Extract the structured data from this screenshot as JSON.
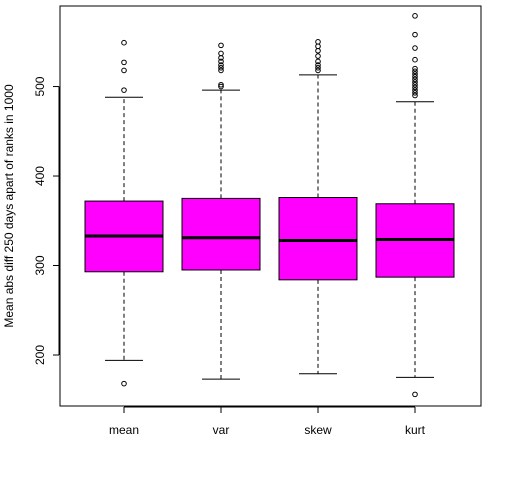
{
  "chart_data": {
    "type": "boxplot",
    "title": "",
    "xlabel": "",
    "ylabel": "Mean abs diff 250 days apart of ranks in 1000",
    "categories": [
      "mean",
      "var",
      "skew",
      "kurt"
    ],
    "ylim": [
      143,
      590
    ],
    "yticks": [
      200,
      300,
      400,
      500
    ],
    "box_fill": "#ff00ff",
    "boxes": [
      {
        "name": "mean",
        "whisker_low": 194,
        "q1": 293,
        "median": 333,
        "q3": 372,
        "whisker_high": 488,
        "outliers": [
          168,
          496,
          518,
          527,
          549
        ]
      },
      {
        "name": "var",
        "whisker_low": 173,
        "q1": 295,
        "median": 331,
        "q3": 375,
        "whisker_high": 496,
        "outliers": [
          500,
          502,
          518,
          521,
          524,
          528,
          532,
          537,
          546
        ]
      },
      {
        "name": "skew",
        "whisker_low": 179,
        "q1": 284,
        "median": 328,
        "q3": 376,
        "whisker_high": 513,
        "outliers": [
          518,
          521,
          524,
          528,
          534,
          540,
          545,
          550
        ]
      },
      {
        "name": "kurt",
        "whisker_low": 175,
        "q1": 287,
        "median": 329,
        "q3": 369,
        "whisker_high": 483,
        "outliers": [
          156,
          490,
          493,
          496,
          499,
          502,
          505,
          508,
          511,
          514,
          517,
          520,
          530,
          543,
          558,
          579
        ]
      }
    ]
  }
}
